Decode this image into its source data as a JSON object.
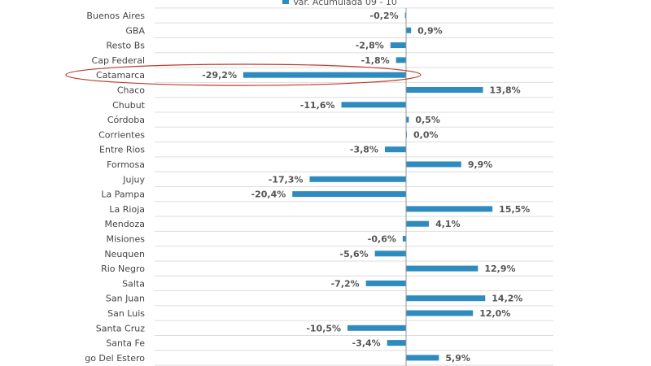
{
  "chart_data": {
    "type": "bar",
    "orientation": "horizontal",
    "legend": {
      "label": "Var. Acumulada 09 - 10",
      "position": "top"
    },
    "bar_color": "#2e8bc0",
    "highlight_color": "#c0392b",
    "highlighted_category": "Catamarca",
    "grid": true,
    "categories": [
      "Buenos Aires",
      "GBA",
      "Resto Bs",
      "Cap Federal",
      "Catamarca",
      "Chaco",
      "Chubut",
      "Córdoba",
      "Corrientes",
      "Entre Rios",
      "Formosa",
      "Jujuy",
      "La Pampa",
      "La Rioja",
      "Mendoza",
      "Misiones",
      "Neuquen",
      "Rio Negro",
      "Salta",
      "San Juan",
      "San Luis",
      "Santa Cruz",
      "Santa Fe",
      "go Del Estero"
    ],
    "values": [
      -0.2,
      0.9,
      -2.8,
      -1.8,
      -29.2,
      13.8,
      -11.6,
      0.5,
      0.0,
      -3.8,
      9.9,
      -17.3,
      -20.4,
      15.5,
      4.1,
      -0.6,
      -5.6,
      12.9,
      -7.2,
      14.2,
      12.0,
      -10.5,
      -3.4,
      5.9
    ],
    "data_labels": [
      "-0,2%",
      "0,9%",
      "-2,8%",
      "-1,8%",
      "-29,2%",
      "13,8%",
      "-11,6%",
      "0,5%",
      "0,0%",
      "-3,8%",
      "9,9%",
      "-17,3%",
      "-20,4%",
      "15,5%",
      "4,1%",
      "-0,6%",
      "-5,6%",
      "12,9%",
      "-7,2%",
      "14,2%",
      "12,0%",
      "-10,5%",
      "-3,4%",
      "5,9%"
    ]
  }
}
